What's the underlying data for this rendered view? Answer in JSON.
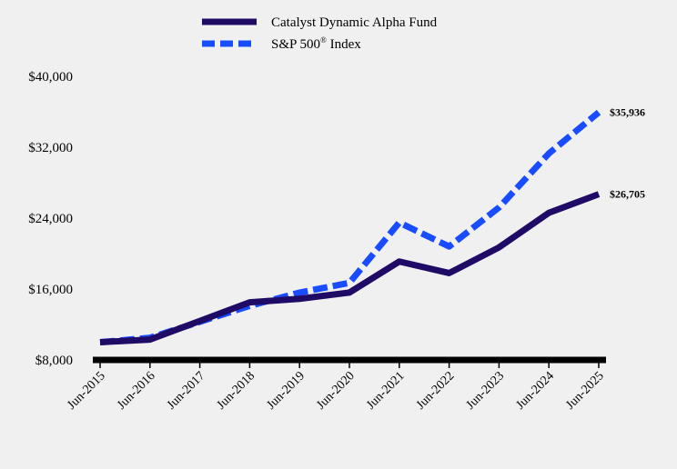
{
  "chart_data": {
    "type": "line",
    "categories": [
      "Jun-2015",
      "Jun-2016",
      "Jun-2017",
      "Jun-2018",
      "Jun-2019",
      "Jun-2020",
      "Jun-2021",
      "Jun-2022",
      "Jun-2023",
      "Jun-2024",
      "Jun-2025"
    ],
    "series": [
      {
        "name": "Catalyst Dynamic Alpha Fund",
        "values": [
          10000,
          10300,
          12400,
          14500,
          14900,
          15600,
          19100,
          17800,
          20700,
          24600,
          26705
        ],
        "color": "#1f0a66",
        "style": "solid",
        "end_label": "$26,705"
      },
      {
        "name_main": "S&P 500",
        "name_sup": "®",
        "name_rest": " Index",
        "values": [
          10000,
          10500,
          12300,
          14100,
          15600,
          16700,
          23500,
          20800,
          25200,
          31300,
          35936
        ],
        "color": "#1a4cff",
        "style": "dashed",
        "end_label": "$35,936"
      }
    ],
    "y_ticks": [
      "$8,000",
      "$16,000",
      "$24,000",
      "$32,000",
      "$40,000"
    ],
    "y_tick_values": [
      8000,
      16000,
      24000,
      32000,
      40000
    ],
    "ylim": [
      8000,
      40000
    ],
    "title": "",
    "xlabel": "",
    "ylabel": "",
    "legend_position": "top-center",
    "grid": false
  }
}
